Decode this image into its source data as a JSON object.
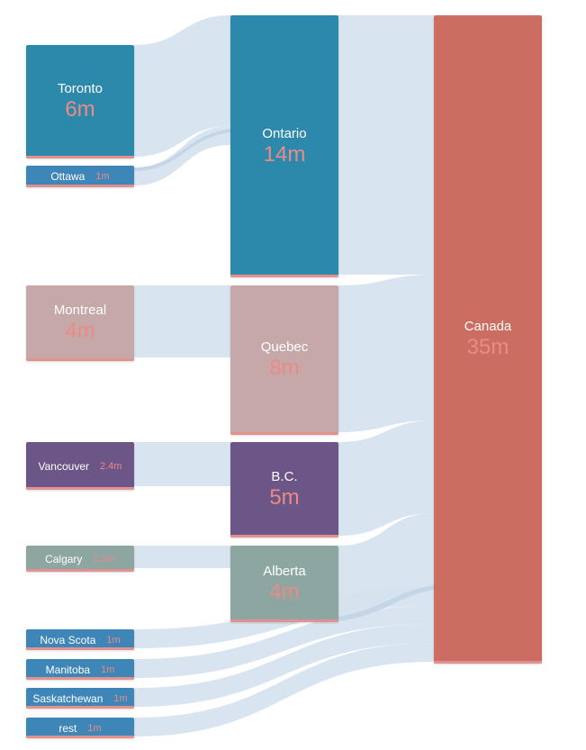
{
  "colors": {
    "link": "#d6e3ee",
    "link_dark": "#bccfe2",
    "value_text": "#ec8a86",
    "label_text": "#ffffff",
    "bottom_bar": "#e3918e"
  },
  "chart_data": {
    "type": "sankey",
    "unit": "m",
    "nodes": [
      {
        "id": "toronto",
        "label": "Toronto",
        "value_label": "6m",
        "value": 6,
        "column": 0,
        "color": "#2c89ab"
      },
      {
        "id": "ottawa",
        "label": "Ottawa",
        "value_label": "1m",
        "value": 1,
        "column": 0,
        "color": "#3e85b8"
      },
      {
        "id": "montreal",
        "label": "Montreal",
        "value_label": "4m",
        "value": 4,
        "column": 0,
        "color": "#c6a8a8"
      },
      {
        "id": "vancouver",
        "label": "Vancouver",
        "value_label": "2.4m",
        "value": 2.4,
        "column": 0,
        "color": "#6c5587"
      },
      {
        "id": "calgary",
        "label": "Calgary",
        "value_label": "1.2m",
        "value": 1.2,
        "column": 0,
        "color": "#8ea6a2"
      },
      {
        "id": "novascota",
        "label": "Nova Scota",
        "value_label": "1m",
        "value": 1,
        "column": 0,
        "color": "#3e85b8"
      },
      {
        "id": "manitoba",
        "label": "Manitoba",
        "value_label": "1m",
        "value": 1,
        "column": 0,
        "color": "#3e85b8"
      },
      {
        "id": "saskatchewan",
        "label": "Saskatchewan",
        "value_label": "1m",
        "value": 1,
        "column": 0,
        "color": "#3e85b8"
      },
      {
        "id": "rest",
        "label": "rest",
        "value_label": "1m",
        "value": 1,
        "column": 0,
        "color": "#3e85b8"
      },
      {
        "id": "ontario",
        "label": "Ontario",
        "value_label": "14m",
        "value": 14,
        "column": 1,
        "color": "#2c89ab"
      },
      {
        "id": "quebec",
        "label": "Quebec",
        "value_label": "8m",
        "value": 8,
        "column": 1,
        "color": "#c6a8a8"
      },
      {
        "id": "bc",
        "label": "B.C.",
        "value_label": "5m",
        "value": 5,
        "column": 1,
        "color": "#6c5587"
      },
      {
        "id": "alberta",
        "label": "Alberta",
        "value_label": "4m",
        "value": 4,
        "column": 1,
        "color": "#8ea6a2"
      },
      {
        "id": "canada",
        "label": "Canada",
        "value_label": "35m",
        "value": 35,
        "column": 2,
        "color": "#cc6d62"
      }
    ],
    "links": [
      {
        "source": "toronto",
        "target": "ontario",
        "value": 6
      },
      {
        "source": "ottawa",
        "target": "ontario",
        "value": 1
      },
      {
        "source": "montreal",
        "target": "quebec",
        "value": 4
      },
      {
        "source": "vancouver",
        "target": "bc",
        "value": 2.4
      },
      {
        "source": "calgary",
        "target": "alberta",
        "value": 1.2
      },
      {
        "source": "ontario",
        "target": "canada",
        "value": 14
      },
      {
        "source": "quebec",
        "target": "canada",
        "value": 8
      },
      {
        "source": "bc",
        "target": "canada",
        "value": 5
      },
      {
        "source": "alberta",
        "target": "canada",
        "value": 4
      },
      {
        "source": "novascota",
        "target": "canada",
        "value": 1
      },
      {
        "source": "manitoba",
        "target": "canada",
        "value": 1
      },
      {
        "source": "saskatchewan",
        "target": "canada",
        "value": 1
      },
      {
        "source": "rest",
        "target": "canada",
        "value": 1
      }
    ]
  }
}
